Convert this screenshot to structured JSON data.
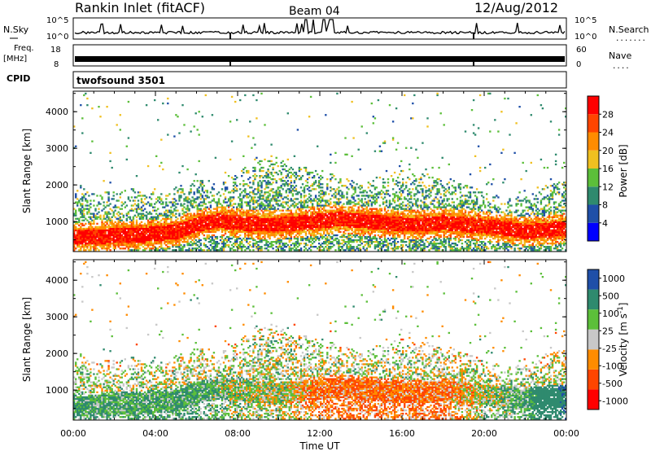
{
  "header": {
    "station": "Rankin Inlet (fitACF)",
    "beam": "Beam 04",
    "date": "12/Aug/2012"
  },
  "strips": {
    "nsky_label": "N.Sky",
    "nsky_ticks": [
      "10^5",
      "10^0"
    ],
    "nsearch_label": "N.Search",
    "freq_label": "Freq.",
    "freq_unit": "[MHz]",
    "freq_ticks": [
      "18",
      "8"
    ],
    "nave_label": "Nave",
    "nave_ticks": [
      "60",
      "0"
    ],
    "cpid_label": "CPID",
    "cpid_value": "twofsound 3501"
  },
  "colors": {
    "power": [
      "#0000ff",
      "#1f4fa8",
      "#2f8a6e",
      "#5cbf3a",
      "#f0c020",
      "#ff8c00",
      "#ff4500",
      "#ff0000"
    ],
    "velocity": [
      "#ff0000",
      "#ff4500",
      "#ff8c00",
      "#c8c8c8",
      "#5cbf3a",
      "#2f8a6e",
      "#1f4fa8"
    ]
  },
  "chart_data": [
    {
      "type": "heatmap",
      "title": "",
      "xlabel": "",
      "ylabel": "Slant Range [km]",
      "x_ticks": [
        "00:00",
        "04:00",
        "08:00",
        "12:00",
        "16:00",
        "20:00",
        "00:00"
      ],
      "x_range_hours": [
        0,
        24
      ],
      "y_ticks": [
        "1000",
        "2000",
        "3000",
        "4000"
      ],
      "ylim": [
        180,
        4560
      ],
      "colorbar": {
        "label": "Power [dB]",
        "ticks": [
          "4",
          "8",
          "12",
          "16",
          "20",
          "24",
          "28"
        ],
        "range": [
          0,
          32
        ]
      },
      "series": [
        {
          "hours": [
            0,
            1,
            2,
            3,
            4,
            5,
            6,
            7,
            8,
            9,
            10,
            11,
            12,
            13,
            14,
            15,
            16,
            17,
            18,
            19,
            20,
            21,
            22,
            23,
            24
          ],
          "center_km": [
            550,
            550,
            600,
            600,
            650,
            700,
            900,
            1000,
            950,
            900,
            900,
            950,
            1000,
            1050,
            1000,
            950,
            900,
            900,
            950,
            900,
            850,
            800,
            700,
            750,
            800
          ],
          "upper_km": [
            2000,
            1900,
            1800,
            1900,
            1700,
            1900,
            2200,
            2000,
            2300,
            2800,
            2800,
            2500,
            2400,
            2200,
            2000,
            2300,
            2400,
            2300,
            2200,
            2100,
            1800,
            1600,
            1700,
            2000,
            2200
          ]
        }
      ]
    },
    {
      "type": "heatmap",
      "title": "",
      "xlabel": "Time UT",
      "ylabel": "Slant Range [km]",
      "x_ticks": [
        "00:00",
        "04:00",
        "08:00",
        "12:00",
        "16:00",
        "20:00",
        "00:00"
      ],
      "x_range_hours": [
        0,
        24
      ],
      "y_ticks": [
        "1000",
        "2000",
        "3000",
        "4000"
      ],
      "ylim": [
        180,
        4560
      ],
      "colorbar": {
        "label": "Velocity [m s^-1]",
        "ticks": [
          "1000",
          "500",
          "100",
          "25",
          "-25",
          "-100",
          "-500",
          "-1000"
        ]
      },
      "series": [
        {
          "hours": [
            0,
            2,
            4,
            6,
            8,
            10,
            12,
            14,
            16,
            18,
            20,
            22,
            24
          ],
          "dominant_velocity": [
            100,
            100,
            100,
            100,
            25,
            25,
            -100,
            -100,
            -100,
            -100,
            25,
            100,
            500
          ]
        }
      ]
    }
  ]
}
